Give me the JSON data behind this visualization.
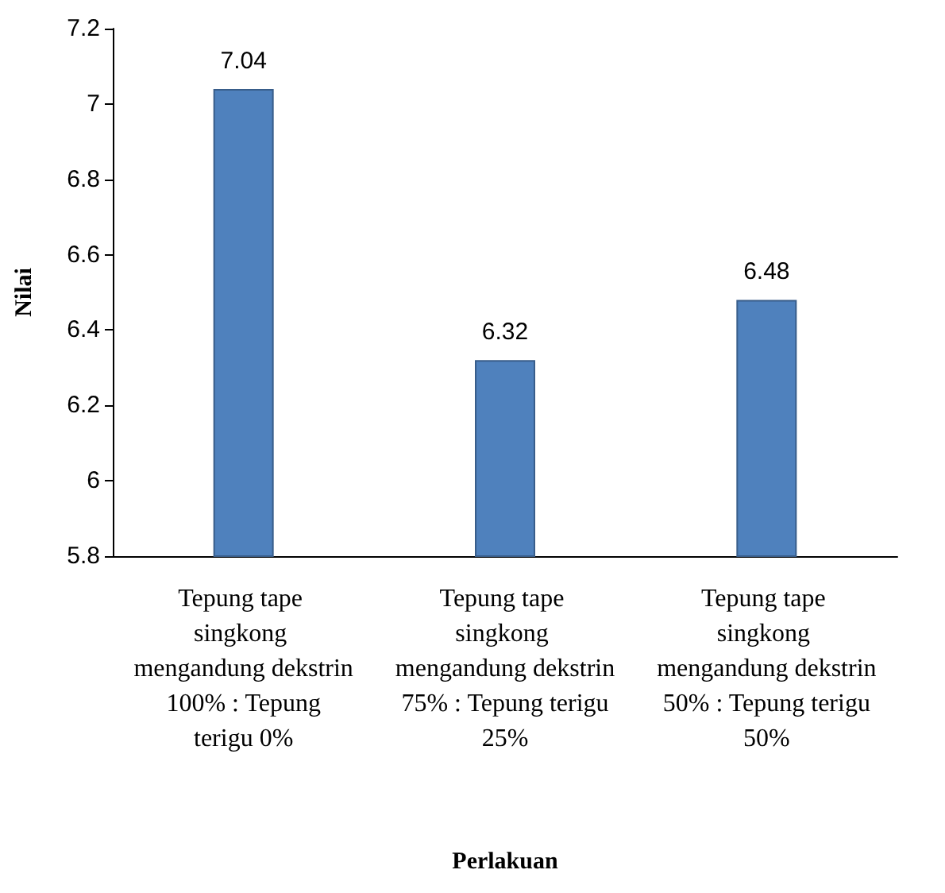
{
  "chart_data": {
    "type": "bar",
    "xlabel": "Perlakuan",
    "ylabel": "Nilai",
    "categories": [
      "Tepung tape singkong mengandung dekstrin 100% : Tepung terigu 0%",
      "Tepung tape singkong mengandung dekstrin 75% : Tepung terigu 25%",
      "Tepung tape singkong mengandung dekstrin 50% : Tepung terigu 50%"
    ],
    "values": [
      7.04,
      6.32,
      6.48
    ],
    "color": "#4f81bd",
    "ylim": [
      5.8,
      7.2
    ],
    "yticks": [
      5.8,
      6,
      6.2,
      6.4,
      6.6,
      6.8,
      7,
      7.2
    ],
    "grid": false,
    "data_labels": true
  }
}
